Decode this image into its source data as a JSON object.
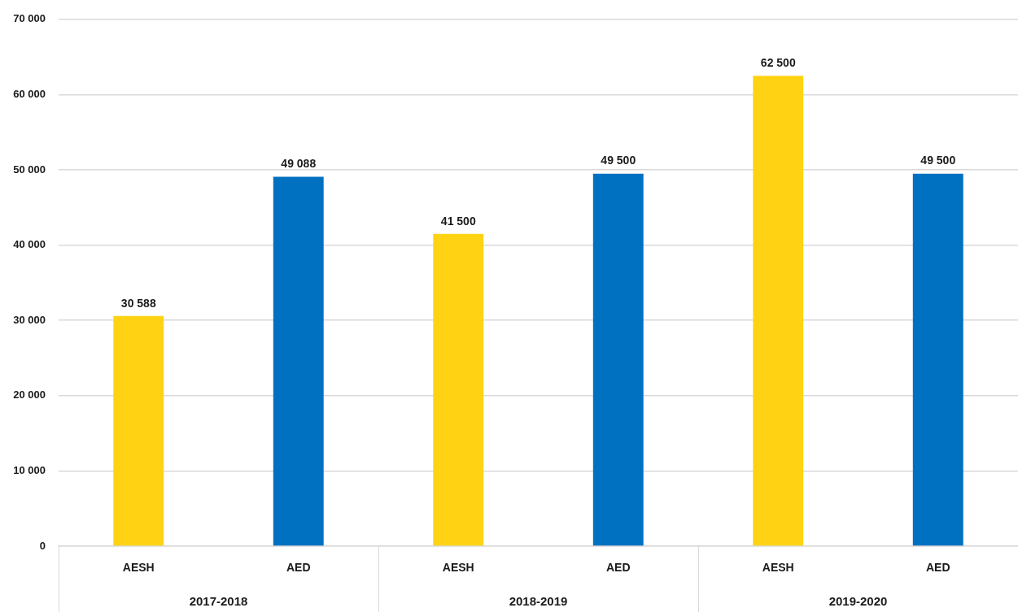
{
  "chart_data": {
    "type": "bar",
    "categories": [
      "2017-2018",
      "2018-2019",
      "2019-2020"
    ],
    "series": [
      {
        "name": "AESH",
        "color": "#ffd314",
        "values": [
          30588,
          41500,
          62500
        ],
        "value_labels": [
          "30 588",
          "41 500",
          "62 500"
        ]
      },
      {
        "name": "AED",
        "color": "#0070c0",
        "values": [
          49088,
          49500,
          49500
        ],
        "value_labels": [
          "49 088",
          "49 500",
          "49 500"
        ]
      }
    ],
    "ylim": [
      0,
      70000
    ],
    "yticks": [
      0,
      {
        "value": 10000,
        "label": "10 000"
      },
      {
        "value": 20000,
        "label": "20 000"
      },
      {
        "value": 30000,
        "label": "30 000"
      },
      {
        "value": 40000,
        "label": "40 000"
      },
      {
        "value": 50000,
        "label": "50 000"
      },
      {
        "value": 60000,
        "label": "60 000"
      },
      {
        "value": 70000,
        "label": "70 000"
      }
    ],
    "grid": "y",
    "legend": false
  }
}
